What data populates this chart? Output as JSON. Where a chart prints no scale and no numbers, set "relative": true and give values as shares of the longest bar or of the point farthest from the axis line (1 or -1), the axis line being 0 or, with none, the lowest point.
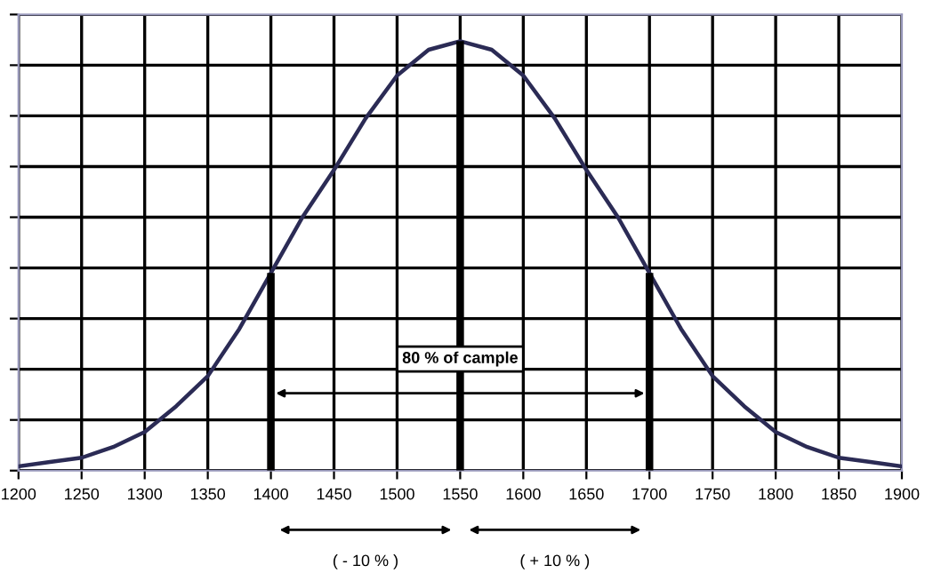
{
  "chart_data": {
    "type": "line",
    "relative": true,
    "grid": true,
    "tick_labels": "x",
    "legend": false,
    "marker": "none",
    "line_style": "solid",
    "xlim": [
      1200,
      1900
    ],
    "xticks": [
      1200,
      1250,
      1300,
      1350,
      1400,
      1450,
      1500,
      1550,
      1600,
      1650,
      1700,
      1750,
      1800,
      1850,
      1900
    ],
    "series": [
      {
        "color": "#2b2b55",
        "x": [
          1200,
          1225,
          1250,
          1275,
          1300,
          1325,
          1350,
          1375,
          1400,
          1425,
          1450,
          1475,
          1500,
          1525,
          1550,
          1575,
          1600,
          1625,
          1650,
          1675,
          1700,
          1725,
          1750,
          1775,
          1800,
          1825,
          1850,
          1875,
          1900
        ],
        "values": [
          0.01,
          0.02,
          0.03,
          0.055,
          0.09,
          0.15,
          0.22,
          0.33,
          0.46,
          0.59,
          0.7,
          0.82,
          0.92,
          0.98,
          1,
          0.98,
          0.92,
          0.82,
          0.7,
          0.59,
          0.46,
          0.33,
          0.22,
          0.15,
          0.09,
          0.055,
          0.03,
          0.02,
          0.01
        ]
      },
      {
        "type": "bar",
        "color": "#000000",
        "x": [
          1400,
          1550,
          1700
        ],
        "values": [
          0.46,
          1,
          0.46
        ]
      }
    ],
    "annotations": [
      "80 % of cample",
      "( - 10 % )",
      "( + 10 % )"
    ]
  }
}
